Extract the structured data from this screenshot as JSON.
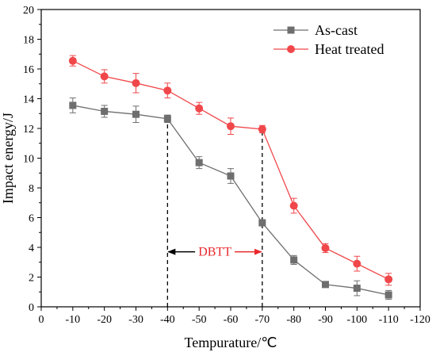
{
  "chart_data": {
    "type": "line",
    "title": "",
    "xlabel": "Tempurature/℃",
    "ylabel": "Impact energy/J",
    "x": [
      -10,
      -20,
      -30,
      -40,
      -50,
      -60,
      -70,
      -80,
      -90,
      -100,
      -110
    ],
    "xlim": [
      0,
      -120
    ],
    "ylim": [
      0,
      20
    ],
    "x_ticks": [
      0,
      -10,
      -20,
      -30,
      -40,
      -50,
      -60,
      -70,
      -80,
      -90,
      -100,
      -110,
      -120
    ],
    "y_ticks": [
      0,
      2,
      4,
      6,
      8,
      10,
      12,
      14,
      16,
      18,
      20
    ],
    "grid": false,
    "legend_position": "top-right",
    "series": [
      {
        "name": "As-cast",
        "color": "#6e6e6e",
        "marker": "square",
        "values": [
          13.55,
          13.15,
          12.95,
          12.65,
          9.7,
          8.8,
          5.65,
          3.15,
          1.5,
          1.25,
          0.8
        ],
        "errors": [
          0.5,
          0.4,
          0.55,
          0.25,
          0.4,
          0.5,
          0.2,
          0.3,
          0.15,
          0.5,
          0.3
        ]
      },
      {
        "name": "Heat treated",
        "color": "#f0474a",
        "marker": "circle",
        "values": [
          16.55,
          15.5,
          15.05,
          14.55,
          13.35,
          12.15,
          11.95,
          6.8,
          3.95,
          2.9,
          1.85
        ],
        "errors": [
          0.35,
          0.45,
          0.65,
          0.5,
          0.4,
          0.55,
          0.25,
          0.5,
          0.3,
          0.5,
          0.4
        ]
      }
    ],
    "annotations": [
      {
        "text": "DBTT",
        "color": "#e8282d",
        "x_from": -40,
        "x_to": -70,
        "y": 3.7
      }
    ],
    "reference_lines": [
      {
        "x": -40,
        "y_top": 12.65
      },
      {
        "x": -70,
        "y_top": 11.95
      }
    ]
  }
}
